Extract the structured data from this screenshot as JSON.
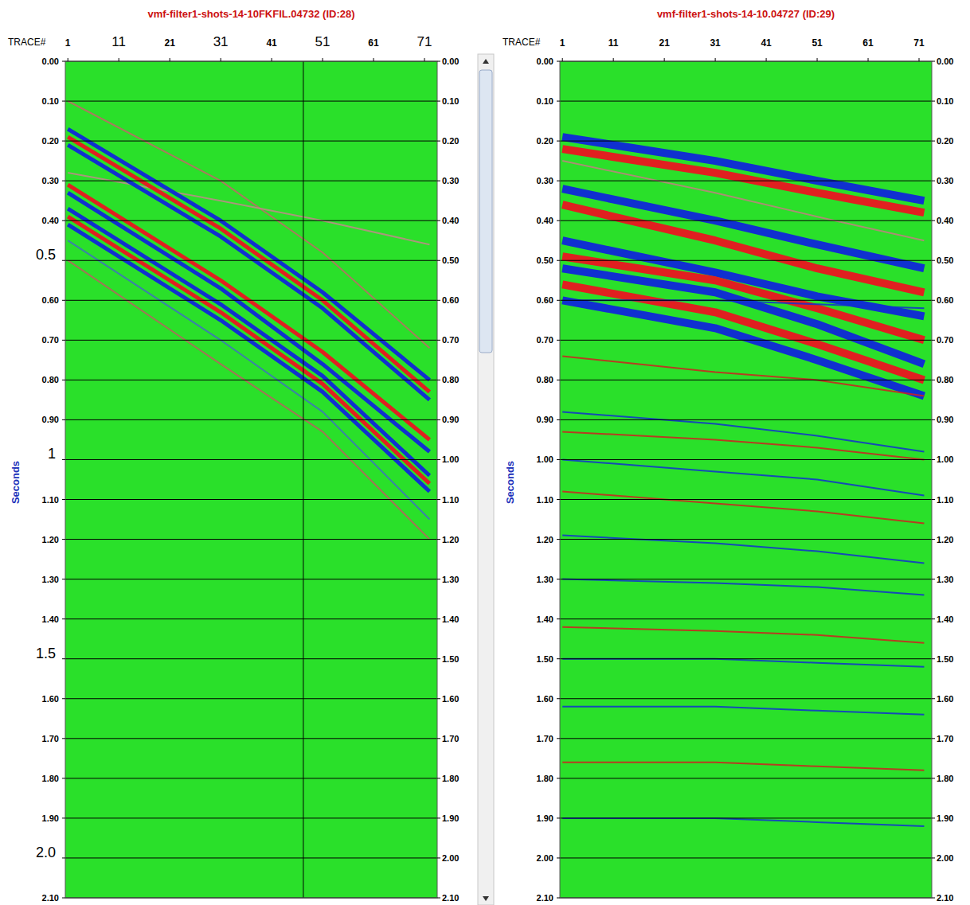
{
  "chart_data": [
    {
      "type": "seismic",
      "title": "vmf-filter1-shots-14-10FKFIL.04732 (ID:28)",
      "x_label": "TRACE#",
      "y_label": "Seconds",
      "grid": true,
      "color": "#2ae02a",
      "xlim": [
        0.5,
        73.5
      ],
      "xticks": [
        1,
        11,
        21,
        31,
        41,
        51,
        61,
        71
      ],
      "ylim": [
        0,
        2.1
      ],
      "yticks": [
        {
          "value": 0,
          "label": "0.00"
        },
        {
          "value": 0.1,
          "label": "0.10"
        },
        {
          "value": 0.2,
          "label": "0.20"
        },
        {
          "value": 0.3,
          "label": "0.30"
        },
        {
          "value": 0.4,
          "label": "0.40"
        },
        0.5,
        {
          "value": 0.6,
          "label": "0.60"
        },
        {
          "value": 0.7,
          "label": "0.70"
        },
        {
          "value": 0.8,
          "label": "0.80"
        },
        {
          "value": 0.9,
          "label": "0.90"
        },
        1,
        {
          "value": 1.1,
          "label": "1.10"
        },
        {
          "value": 1.2,
          "label": "1.20"
        },
        {
          "value": 1.3,
          "label": "1.30"
        },
        {
          "value": 1.4,
          "label": "1.40"
        },
        1.5,
        {
          "value": 1.6,
          "label": "1.60"
        },
        {
          "value": 1.7,
          "label": "1.70"
        },
        {
          "value": 1.8,
          "label": "1.80"
        },
        {
          "value": 1.9,
          "label": "1.90"
        },
        {
          "value": 2,
          "label": "2.0"
        },
        {
          "value": 2.1,
          "label": "2.10"
        }
      ],
      "y2lim": [
        0,
        2.1
      ],
      "y2ticks": [
        {
          "value": 0,
          "label": "0.00"
        },
        {
          "value": 0.1,
          "label": "0.10"
        },
        {
          "value": 0.2,
          "label": "0.20"
        },
        {
          "value": 0.3,
          "label": "0.30"
        },
        {
          "value": 0.4,
          "label": "0.40"
        },
        {
          "value": 0.5,
          "label": "0.50"
        },
        {
          "value": 0.6,
          "label": "0.60"
        },
        {
          "value": 0.7,
          "label": "0.70"
        },
        {
          "value": 0.8,
          "label": "0.80"
        },
        {
          "value": 0.9,
          "label": "0.90"
        },
        {
          "value": 1,
          "label": "1.00"
        },
        {
          "value": 1.1,
          "label": "1.10"
        },
        {
          "value": 1.2,
          "label": "1.20"
        },
        {
          "value": 1.3,
          "label": "1.30"
        },
        {
          "value": 1.4,
          "label": "1.40"
        },
        {
          "value": 1.5,
          "label": "1.50"
        },
        {
          "value": 1.6,
          "label": "1.60"
        },
        {
          "value": 1.7,
          "label": "1.70"
        },
        {
          "value": 1.8,
          "label": "1.80"
        },
        {
          "value": 1.9,
          "label": "1.90"
        },
        {
          "value": 2,
          "label": "2.00"
        },
        {
          "value": 2.1,
          "label": "2.10"
        }
      ],
      "x": [
        1,
        31,
        51,
        72
      ],
      "events": [
        {
          "color": "#c06868",
          "line_style": "thin",
          "values": [
            0.1,
            0.3,
            0.48,
            0.72
          ]
        },
        {
          "color": "#c08a8a",
          "line_style": "thin",
          "values": [
            0.28,
            0.35,
            0.4,
            0.46
          ]
        },
        {
          "color": "#1030d0",
          "line_style": "thick",
          "values": [
            0.17,
            0.4,
            0.58,
            0.8
          ]
        },
        {
          "color": "#e02020",
          "line_style": "thick",
          "values": [
            0.19,
            0.42,
            0.6,
            0.83
          ]
        },
        {
          "color": "#1030d0",
          "line_style": "thick",
          "values": [
            0.21,
            0.44,
            0.62,
            0.85
          ]
        },
        {
          "color": "#e02020",
          "line_style": "thick",
          "values": [
            0.31,
            0.55,
            0.73,
            0.95
          ]
        },
        {
          "color": "#1030d0",
          "line_style": "thick",
          "values": [
            0.33,
            0.57,
            0.76,
            0.98
          ]
        },
        {
          "color": "#1030d0",
          "line_style": "thick",
          "values": [
            0.37,
            0.61,
            0.79,
            1.04
          ]
        },
        {
          "color": "#e02020",
          "line_style": "thick",
          "values": [
            0.39,
            0.63,
            0.81,
            1.06
          ]
        },
        {
          "color": "#1030d0",
          "line_style": "thick",
          "values": [
            0.41,
            0.65,
            0.83,
            1.08
          ]
        },
        {
          "color": "#4070c0",
          "line_style": "thin",
          "values": [
            0.45,
            0.7,
            0.88,
            1.15
          ]
        },
        {
          "color": "#b86060",
          "line_style": "thin",
          "values": [
            0.5,
            0.76,
            0.93,
            1.2
          ]
        }
      ]
    },
    {
      "type": "seismic",
      "title": "vmf-filter1-shots-14-10.04727 (ID:29)",
      "x_label": "TRACE#",
      "y_label": "Seconds",
      "grid": true,
      "color": "#2ae02a",
      "xlim": [
        0.5,
        73.5
      ],
      "xticks": [
        1,
        11,
        21,
        31,
        41,
        51,
        61,
        71
      ],
      "ylim": [
        0,
        2.1
      ],
      "yticks": [
        {
          "value": 0,
          "label": "0.00"
        },
        {
          "value": 0.1,
          "label": "0.10"
        },
        {
          "value": 0.2,
          "label": "0.20"
        },
        {
          "value": 0.3,
          "label": "0.30"
        },
        {
          "value": 0.4,
          "label": "0.40"
        },
        {
          "value": 0.5,
          "label": "0.50"
        },
        {
          "value": 0.6,
          "label": "0.60"
        },
        {
          "value": 0.7,
          "label": "0.70"
        },
        {
          "value": 0.8,
          "label": "0.80"
        },
        {
          "value": 0.9,
          "label": "0.90"
        },
        {
          "value": 1,
          "label": "1.00"
        },
        {
          "value": 1.1,
          "label": "1.10"
        },
        {
          "value": 1.2,
          "label": "1.20"
        },
        {
          "value": 1.3,
          "label": "1.30"
        },
        {
          "value": 1.4,
          "label": "1.40"
        },
        {
          "value": 1.5,
          "label": "1.50"
        },
        {
          "value": 1.6,
          "label": "1.60"
        },
        {
          "value": 1.7,
          "label": "1.70"
        },
        {
          "value": 1.8,
          "label": "1.80"
        },
        {
          "value": 1.9,
          "label": "1.90"
        },
        {
          "value": 2,
          "label": "2.00"
        },
        {
          "value": 2.1,
          "label": "2.10"
        }
      ],
      "y2lim": [
        0,
        2.1
      ],
      "y2ticks": [
        {
          "value": 0,
          "label": "0.00"
        },
        {
          "value": 0.1,
          "label": "0.10"
        },
        {
          "value": 0.2,
          "label": "0.20"
        },
        {
          "value": 0.3,
          "label": "0.30"
        },
        {
          "value": 0.4,
          "label": "0.40"
        },
        {
          "value": 0.5,
          "label": "0.50"
        },
        {
          "value": 0.6,
          "label": "0.60"
        },
        {
          "value": 0.7,
          "label": "0.70"
        },
        {
          "value": 0.8,
          "label": "0.80"
        },
        {
          "value": 0.9,
          "label": "0.90"
        },
        {
          "value": 1,
          "label": "1.00"
        },
        {
          "value": 1.1,
          "label": "1.10"
        },
        {
          "value": 1.2,
          "label": "1.20"
        },
        {
          "value": 1.3,
          "label": "1.30"
        },
        {
          "value": 1.4,
          "label": "1.40"
        },
        {
          "value": 1.5,
          "label": "1.50"
        },
        {
          "value": 1.6,
          "label": "1.60"
        },
        {
          "value": 1.7,
          "label": "1.70"
        },
        {
          "value": 1.8,
          "label": "1.80"
        },
        {
          "value": 1.9,
          "label": "1.90"
        },
        {
          "value": 2,
          "label": "2.00"
        },
        {
          "value": 2.1,
          "label": "2.10"
        }
      ],
      "x": [
        1,
        31,
        51,
        72
      ],
      "events": [
        {
          "color": "#c08080",
          "line_style": "thin",
          "values": [
            0.25,
            0.33,
            0.39,
            0.45
          ]
        },
        {
          "color": "#1030d0",
          "line_style": "thick",
          "values": [
            0.19,
            0.25,
            0.3,
            0.35
          ]
        },
        {
          "color": "#e02020",
          "line_style": "thick",
          "values": [
            0.22,
            0.28,
            0.33,
            0.38
          ]
        },
        {
          "color": "#1030d0",
          "line_style": "thick",
          "values": [
            0.32,
            0.4,
            0.46,
            0.52
          ]
        },
        {
          "color": "#e02020",
          "line_style": "thick",
          "values": [
            0.36,
            0.45,
            0.52,
            0.58
          ]
        },
        {
          "color": "#1030d0",
          "line_style": "thick",
          "values": [
            0.45,
            0.53,
            0.59,
            0.64
          ]
        },
        {
          "color": "#e02020",
          "line_style": "thick",
          "values": [
            0.49,
            0.55,
            0.62,
            0.7
          ]
        },
        {
          "color": "#1030d0",
          "line_style": "thick",
          "values": [
            0.52,
            0.58,
            0.66,
            0.76
          ]
        },
        {
          "color": "#e02020",
          "line_style": "thick",
          "values": [
            0.56,
            0.63,
            0.71,
            0.8
          ]
        },
        {
          "color": "#1030d0",
          "line_style": "thick",
          "values": [
            0.6,
            0.67,
            0.75,
            0.84
          ]
        },
        {
          "color": "#1030d0",
          "line_style": "thin",
          "values": [
            0.6,
            0.6,
            0.61,
            0.62
          ]
        },
        {
          "color": "#d02020",
          "line_style": "thin",
          "values": [
            0.74,
            0.78,
            0.8,
            0.84
          ]
        },
        {
          "color": "#1030d0",
          "line_style": "thin",
          "values": [
            0.88,
            0.91,
            0.94,
            0.98
          ]
        },
        {
          "color": "#d02020",
          "line_style": "thin",
          "values": [
            0.93,
            0.95,
            0.97,
            1.0
          ]
        },
        {
          "color": "#1030d0",
          "line_style": "thin",
          "values": [
            1.0,
            1.03,
            1.05,
            1.09
          ]
        },
        {
          "color": "#d02020",
          "line_style": "thin",
          "values": [
            1.08,
            1.11,
            1.13,
            1.16
          ]
        },
        {
          "color": "#1030d0",
          "line_style": "thin",
          "values": [
            1.19,
            1.21,
            1.23,
            1.26
          ]
        },
        {
          "color": "#1030d0",
          "line_style": "thin",
          "values": [
            1.3,
            1.31,
            1.32,
            1.34
          ]
        },
        {
          "color": "#d02020",
          "line_style": "thin",
          "values": [
            1.42,
            1.43,
            1.44,
            1.46
          ]
        },
        {
          "color": "#1030d0",
          "line_style": "thin",
          "values": [
            1.5,
            1.5,
            1.51,
            1.52
          ]
        },
        {
          "color": "#1030d0",
          "line_style": "thin",
          "values": [
            1.62,
            1.62,
            1.63,
            1.64
          ]
        },
        {
          "color": "#d02020",
          "line_style": "thin",
          "values": [
            1.76,
            1.76,
            1.77,
            1.78
          ]
        },
        {
          "color": "#1030d0",
          "line_style": "thin",
          "values": [
            1.9,
            1.9,
            1.91,
            1.92
          ]
        }
      ]
    }
  ]
}
